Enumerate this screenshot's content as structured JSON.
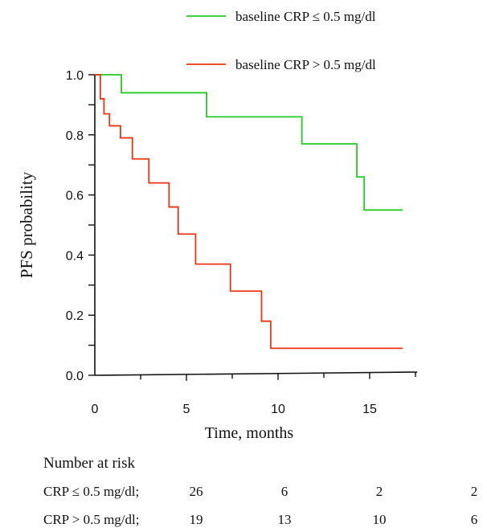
{
  "chart_data": {
    "type": "line",
    "title": "",
    "xlabel": "Time, months",
    "ylabel": "PFS probability",
    "xlim": [
      0,
      17.5
    ],
    "ylim": [
      0,
      1.0
    ],
    "xticks": [
      0,
      5,
      10,
      15
    ],
    "xtick_labels": [
      "0",
      "5",
      "10",
      "15"
    ],
    "yticks": [
      0.0,
      0.2,
      0.4,
      0.6,
      0.8,
      1.0
    ],
    "ytick_labels": [
      "0.0",
      "0.2",
      "0.4",
      "0.6",
      "0.8",
      "1.0"
    ],
    "grid": false,
    "legend_position": "top-right",
    "series": [
      {
        "name": "baseline CRP ≤ 0.5 mg/dl",
        "color": "#22cc22",
        "step": true,
        "x": [
          0,
          1.45,
          6.1,
          11.3,
          14.3,
          14.7,
          16.8
        ],
        "y": [
          1.0,
          0.94,
          0.86,
          0.77,
          0.66,
          0.55,
          0.55
        ]
      },
      {
        "name": "baseline CRP > 0.5 mg/dl",
        "color": "#ee3311",
        "step": true,
        "x": [
          0,
          0.3,
          0.5,
          0.8,
          1.4,
          2.05,
          2.95,
          4.05,
          4.55,
          5.5,
          7.4,
          9.1,
          9.6,
          16.8
        ],
        "y": [
          1.0,
          0.92,
          0.87,
          0.83,
          0.79,
          0.72,
          0.64,
          0.56,
          0.47,
          0.37,
          0.28,
          0.18,
          0.09,
          0.09
        ]
      }
    ]
  },
  "number_at_risk": {
    "title": "Number at risk",
    "rows": [
      {
        "label": "CRP  ≤ 0.5 mg/dl;",
        "values": [
          "26",
          "6",
          "2",
          "2"
        ]
      },
      {
        "label": "CRP  > 0.5 mg/dl;",
        "values": [
          "19",
          "13",
          "10",
          "6"
        ]
      }
    ]
  }
}
